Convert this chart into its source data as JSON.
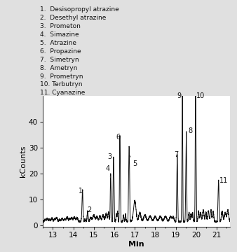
{
  "title": "",
  "xlabel": "Min",
  "ylabel": "kCounts",
  "xlim": [
    12.5,
    21.65
  ],
  "ylim": [
    -0.5,
    50
  ],
  "yticks": [
    0,
    10,
    20,
    30,
    40
  ],
  "xticks": [
    13,
    14,
    15,
    16,
    17,
    18,
    19,
    20,
    21
  ],
  "background_color": "#e0e0e0",
  "plot_bg_color": "#ffffff",
  "legend_lines": [
    "1.  Desisopropyl atrazine",
    "2.  Desethyl atrazine",
    "3.  Prometon",
    "4.  Simazine",
    "5.  Atrazine",
    "6.  Propazine",
    "7.  Simetryn",
    "8.  Ametryn",
    "9.  Prometryn",
    "10. Terbutryn",
    "11. Cyanazine"
  ],
  "line_color": "#111111",
  "line_width": 0.7
}
